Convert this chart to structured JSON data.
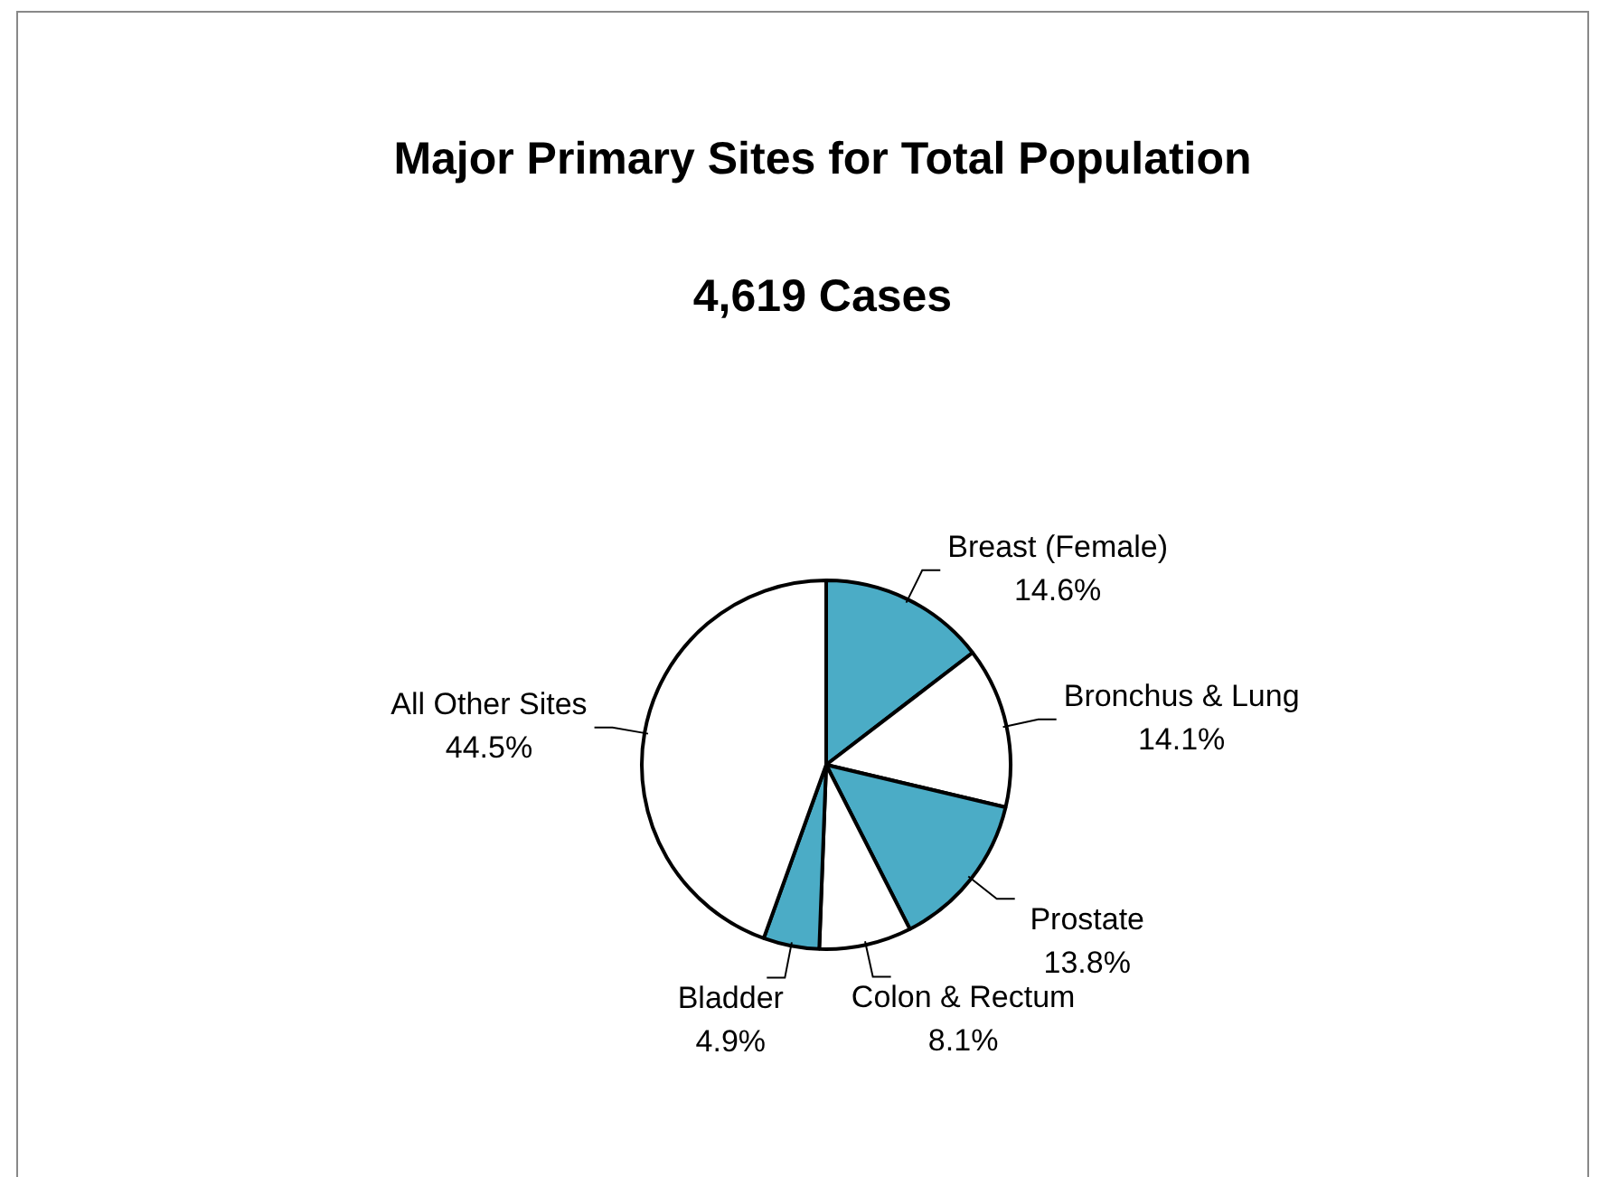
{
  "chart_data": {
    "type": "pie",
    "title": "Major Primary Sites for Total Population",
    "subtitle": "4,619 Cases",
    "categories": [
      "Breast (Female)",
      "Bronchus & Lung",
      "Prostate",
      "Colon & Rectum",
      "Bladder",
      "All Other Sites"
    ],
    "values": [
      14.6,
      14.1,
      13.8,
      8.1,
      4.9,
      44.5
    ],
    "value_labels": [
      "14.6%",
      "14.1%",
      "13.8%",
      "8.1%",
      "4.9%",
      "44.5%"
    ],
    "colors": [
      "#4bacc6",
      "#ffffff",
      "#4bacc6",
      "#ffffff",
      "#4bacc6",
      "#ffffff"
    ],
    "legend": false
  }
}
